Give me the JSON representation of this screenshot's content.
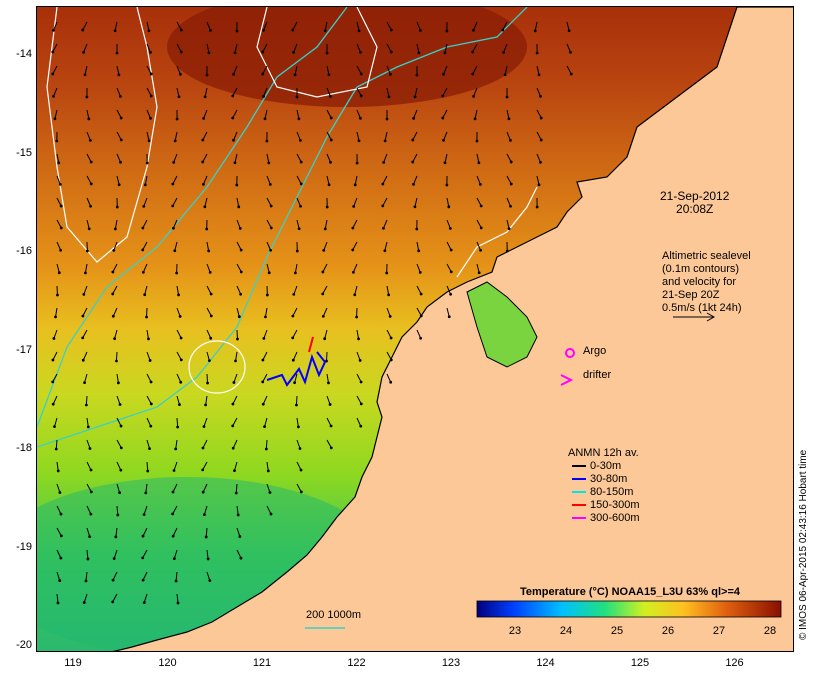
{
  "map": {
    "lon_ticks": [
      "119",
      "120",
      "121",
      "122",
      "123",
      "124",
      "125",
      "126"
    ],
    "lat_ticks": [
      "-14",
      "-15",
      "-16",
      "-17",
      "-18",
      "-19",
      "-20"
    ],
    "date_line1": "21-Sep-2012",
    "date_line2": "20:08Z",
    "altimetry_note": [
      "Altimetric sealevel",
      "(0.1m contours)",
      "and velocity for",
      "21-Sep 20Z",
      "0.5m/s (1kt 24h)"
    ],
    "argo_label": "Argo",
    "drifter_label": "drifter",
    "depth_legend_title": "ANMN 12h av.",
    "depth_legend": [
      {
        "label": "0-30m",
        "color": "#000000"
      },
      {
        "label": "30-80m",
        "color": "#0000ff"
      },
      {
        "label": "80-150m",
        "color": "#00e5e5"
      },
      {
        "label": "150-300m",
        "color": "#ff0000"
      },
      {
        "label": "300-600m",
        "color": "#ff00ff"
      }
    ],
    "isobath_label": "200  1000m",
    "colorbar_title": "Temperature (°C) NOAA15_L3U 63% ql>=4",
    "colorbar_ticks": [
      "23",
      "24",
      "25",
      "26",
      "27",
      "28"
    ],
    "credit": "© IMOS 06-Apr-2015 02:43:16 Hobart time",
    "colors": {
      "land": "#fdc898",
      "warm": "#9e2a0a",
      "cool": "#2cc860",
      "contour": "#ffffff",
      "isobath": "#3ad0c8"
    }
  }
}
